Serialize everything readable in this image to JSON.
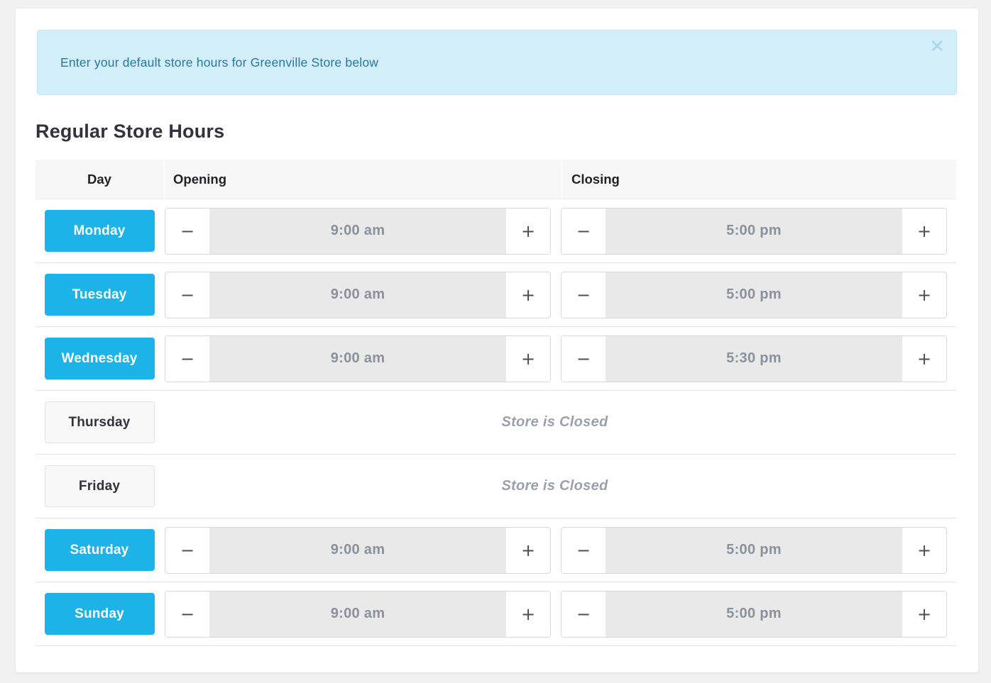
{
  "banner": {
    "message": "Enter your default store hours for Greenville Store below",
    "close_icon": "✕"
  },
  "page_title": "Regular Store Hours",
  "table": {
    "columns": {
      "day": "Day",
      "opening": "Opening",
      "closing": "Closing"
    },
    "closed_label": "Store is Closed",
    "stepper": {
      "decrement_label": "−",
      "increment_label": "+"
    },
    "rows": [
      {
        "day": "Monday",
        "open": true,
        "opening": "9:00 am",
        "closing": "5:00 pm"
      },
      {
        "day": "Tuesday",
        "open": true,
        "opening": "9:00 am",
        "closing": "5:00 pm"
      },
      {
        "day": "Wednesday",
        "open": true,
        "opening": "9:00 am",
        "closing": "5:30 pm"
      },
      {
        "day": "Thursday",
        "open": false
      },
      {
        "day": "Friday",
        "open": false
      },
      {
        "day": "Saturday",
        "open": true,
        "opening": "9:00 am",
        "closing": "5:00 pm"
      },
      {
        "day": "Sunday",
        "open": true,
        "opening": "9:00 am",
        "closing": "5:00 pm"
      }
    ]
  },
  "colors": {
    "accent": "#1db2e8",
    "banner-bg": "#d3eef9",
    "banner-border": "#c3e7f4",
    "banner-text": "#26789d"
  }
}
